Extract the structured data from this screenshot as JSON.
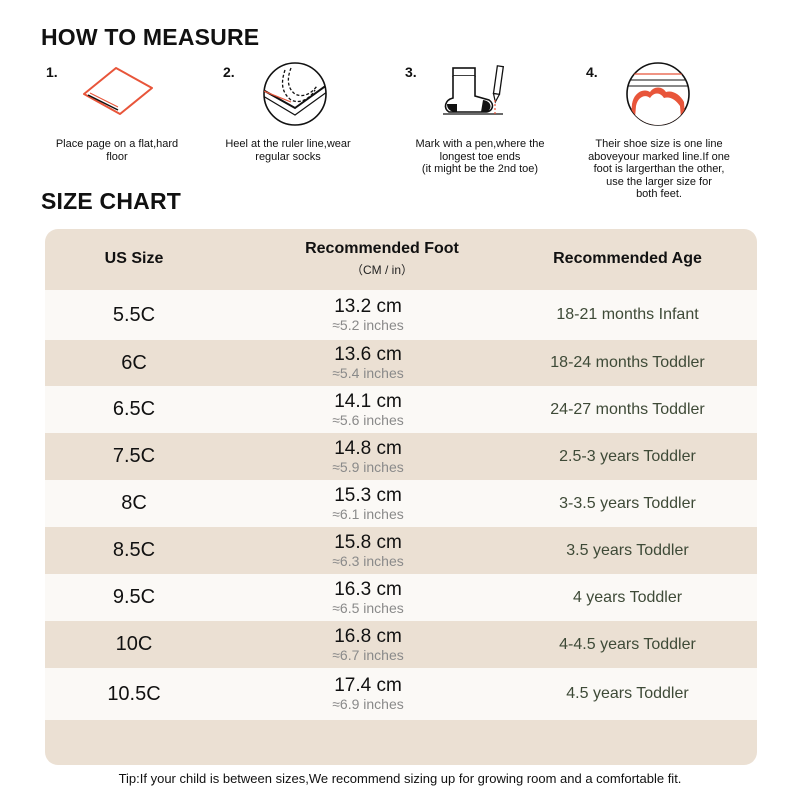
{
  "how_to_measure": {
    "title": "HOW TO MEASURE",
    "steps": [
      {
        "number": "1.",
        "icon": "flat-paper-icon",
        "text": "Place page on a flat,hard\nfloor"
      },
      {
        "number": "2.",
        "icon": "heel-ruler-icon",
        "text": "Heel at the ruler line,wear\nregular socks"
      },
      {
        "number": "3.",
        "icon": "sock-pen-icon",
        "text": "Mark with a pen,where the\nlongest toe ends\n(it might be the 2nd toe)"
      },
      {
        "number": "4.",
        "icon": "toe-line-icon",
        "text": "Their shoe size is one line\naboveyour marked line.If one\nfoot is largerthan the other,\nuse the larger size for\nboth feet."
      }
    ]
  },
  "size_chart": {
    "title": "SIZE CHART",
    "headers": {
      "us_size": "US Size",
      "foot": "Recommended Foot",
      "foot_sub": "（CM / in）",
      "age": "Recommended Age"
    },
    "rows": [
      {
        "size": "5.5C",
        "cm": "13.2 cm",
        "inch": "≈5.2 inches",
        "age": "18-21 months Infant"
      },
      {
        "size": "6C",
        "cm": "13.6 cm",
        "inch": "≈5.4 inches",
        "age": "18-24 months Toddler"
      },
      {
        "size": "6.5C",
        "cm": "14.1 cm",
        "inch": "≈5.6 inches",
        "age": "24-27 months Toddler"
      },
      {
        "size": "7.5C",
        "cm": "14.8 cm",
        "inch": "≈5.9 inches",
        "age": "2.5-3 years Toddler"
      },
      {
        "size": "8C",
        "cm": "15.3 cm",
        "inch": "≈6.1 inches",
        "age": "3-3.5 years Toddler"
      },
      {
        "size": "8.5C",
        "cm": "15.8 cm",
        "inch": "≈6.3 inches",
        "age": "3.5 years Toddler"
      },
      {
        "size": "9.5C",
        "cm": "16.3 cm",
        "inch": "≈6.5 inches",
        "age": "4 years Toddler"
      },
      {
        "size": "10C",
        "cm": "16.8 cm",
        "inch": "≈6.7 inches",
        "age": "4-4.5 years Toddler"
      },
      {
        "size": "10.5C",
        "cm": "17.4 cm",
        "inch": "≈6.9 inches",
        "age": "4.5 years Toddler"
      }
    ]
  },
  "tip": "Tip:If your child is between sizes,We recommend sizing up for growing room and a comfortable fit.",
  "colors": {
    "accent": "#e8553a",
    "table_bg": "#ebe0d3",
    "row_light": "#fbf9f6",
    "age_text": "#3e4a37"
  }
}
